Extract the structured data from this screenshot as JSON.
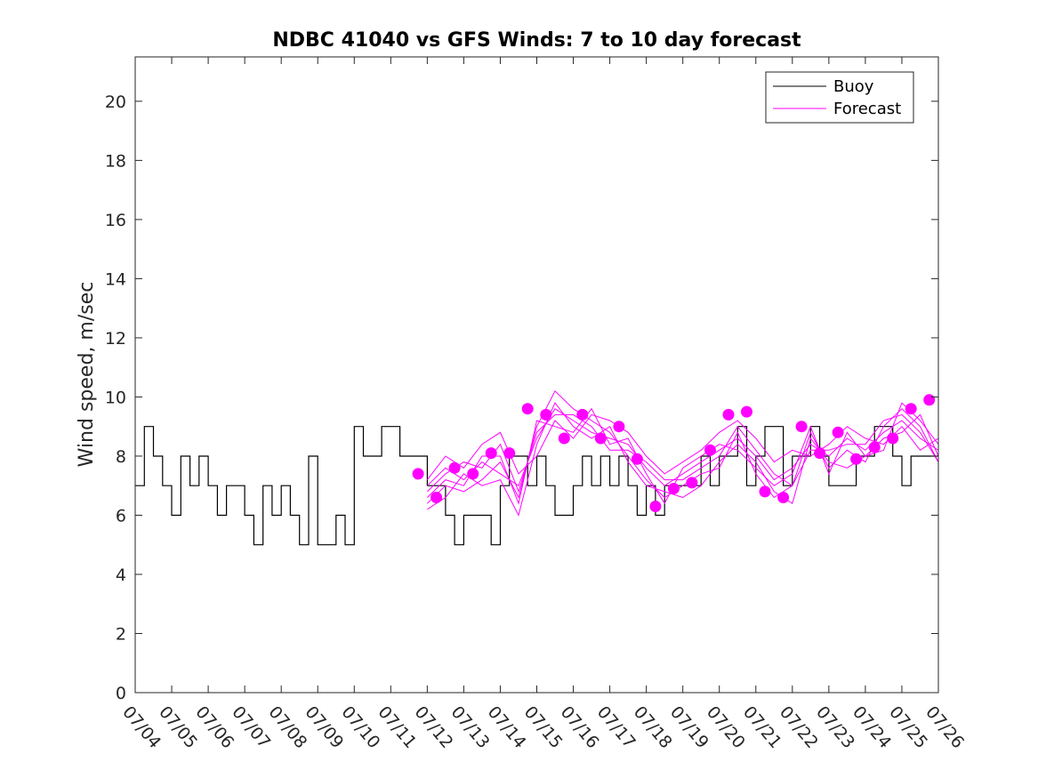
{
  "chart_data": {
    "type": "line",
    "title": "NDBC 41040 vs GFS Winds: 7 to 10 day forecast",
    "xlabel": "",
    "ylabel": "Wind speed, m/sec",
    "x_start": "07/04",
    "x_end": "07/26",
    "xtick_labels": [
      "07/04",
      "07/05",
      "07/06",
      "07/07",
      "07/08",
      "07/09",
      "07/10",
      "07/11",
      "07/12",
      "07/13",
      "07/14",
      "07/15",
      "07/16",
      "07/17",
      "07/18",
      "07/19",
      "07/20",
      "07/21",
      "07/22",
      "07/23",
      "07/24",
      "07/25",
      "07/26"
    ],
    "ylim": [
      0,
      21.5
    ],
    "yticks": [
      0,
      2,
      4,
      6,
      8,
      10,
      12,
      14,
      16,
      18,
      20
    ],
    "grid": false,
    "legend_position": "top-right",
    "colors": {
      "buoy": "#000000",
      "forecast": "#ff00ff"
    },
    "series": [
      {
        "name": "Buoy",
        "style": "line",
        "x": [
          "07/04 00:00",
          "07/04 06:00",
          "07/04 12:00",
          "07/04 18:00",
          "07/05 00:00",
          "07/05 06:00",
          "07/05 12:00",
          "07/05 18:00",
          "07/06 00:00",
          "07/06 06:00",
          "07/06 12:00",
          "07/06 18:00",
          "07/07 00:00",
          "07/07 06:00",
          "07/07 12:00",
          "07/07 18:00",
          "07/08 00:00",
          "07/08 06:00",
          "07/08 12:00",
          "07/08 18:00",
          "07/09 00:00",
          "07/09 06:00",
          "07/09 12:00",
          "07/09 18:00",
          "07/10 00:00",
          "07/10 06:00",
          "07/10 12:00",
          "07/10 18:00",
          "07/11 00:00",
          "07/11 06:00",
          "07/11 12:00",
          "07/11 18:00",
          "07/12 00:00",
          "07/12 06:00",
          "07/12 12:00",
          "07/12 18:00",
          "07/13 00:00",
          "07/13 06:00",
          "07/13 12:00",
          "07/13 18:00",
          "07/14 00:00",
          "07/14 06:00",
          "07/14 12:00",
          "07/14 18:00",
          "07/15 00:00",
          "07/15 06:00",
          "07/15 12:00",
          "07/15 18:00",
          "07/16 00:00",
          "07/16 06:00",
          "07/16 12:00",
          "07/16 18:00",
          "07/17 00:00",
          "07/17 06:00",
          "07/17 12:00",
          "07/17 18:00",
          "07/18 00:00",
          "07/18 06:00",
          "07/18 12:00",
          "07/18 18:00",
          "07/19 00:00",
          "07/19 06:00",
          "07/19 12:00",
          "07/19 18:00",
          "07/20 00:00",
          "07/20 06:00",
          "07/20 12:00",
          "07/20 18:00",
          "07/21 00:00",
          "07/21 06:00",
          "07/21 12:00",
          "07/21 18:00",
          "07/22 00:00",
          "07/22 06:00",
          "07/22 12:00",
          "07/22 18:00",
          "07/23 00:00",
          "07/23 06:00",
          "07/23 12:00",
          "07/23 18:00",
          "07/24 00:00",
          "07/24 06:00",
          "07/24 12:00",
          "07/24 18:00",
          "07/25 00:00",
          "07/25 06:00",
          "07/25 12:00",
          "07/25 18:00",
          "07/26 00:00"
        ],
        "values": [
          7,
          9,
          8,
          7,
          6,
          8,
          7,
          8,
          7,
          6,
          7,
          7,
          6,
          5,
          7,
          6,
          7,
          6,
          5,
          8,
          5,
          5,
          6,
          5,
          9,
          8,
          8,
          9,
          9,
          8,
          8,
          8,
          7,
          7,
          6,
          5,
          6,
          6,
          6,
          5,
          7,
          8,
          8,
          7,
          8,
          7,
          6,
          6,
          7,
          8,
          7,
          8,
          7,
          8,
          7,
          6,
          7,
          6,
          7,
          7,
          7,
          7,
          8,
          7,
          8,
          8,
          9,
          7,
          8,
          9,
          9,
          7,
          8,
          8,
          9,
          8,
          7,
          7,
          7,
          8,
          8,
          9,
          9,
          8,
          7,
          8,
          8,
          8,
          8
        ]
      },
      {
        "name": "",
        "style": "markers",
        "x": [
          "07/11 18:00",
          "07/12 06:00",
          "07/12 18:00",
          "07/13 06:00",
          "07/13 18:00",
          "07/14 06:00",
          "07/14 18:00",
          "07/15 06:00",
          "07/15 18:00",
          "07/16 06:00",
          "07/16 18:00",
          "07/17 06:00",
          "07/17 18:00",
          "07/18 06:00",
          "07/18 18:00",
          "07/19 06:00",
          "07/19 18:00",
          "07/20 06:00",
          "07/20 18:00",
          "07/21 06:00",
          "07/21 18:00",
          "07/22 06:00",
          "07/22 18:00",
          "07/23 06:00",
          "07/23 18:00",
          "07/24 06:00",
          "07/24 18:00",
          "07/25 06:00",
          "07/25 18:00"
        ],
        "values": [
          7.4,
          6.6,
          7.6,
          7.4,
          8.1,
          8.1,
          9.6,
          9.4,
          8.6,
          9.4,
          8.6,
          9.0,
          7.9,
          6.3,
          6.9,
          7.1,
          8.2,
          9.4,
          9.5,
          6.8,
          6.6,
          9.0,
          8.1,
          8.8,
          7.9,
          8.3,
          8.6,
          9.6,
          9.9
        ]
      },
      {
        "name": "Forecast",
        "style": "ensemble",
        "x": [
          "07/12 00:00",
          "07/12 12:00",
          "07/13 00:00",
          "07/13 12:00",
          "07/14 00:00",
          "07/14 12:00",
          "07/15 00:00",
          "07/15 12:00",
          "07/16 00:00",
          "07/16 12:00",
          "07/17 00:00",
          "07/17 12:00",
          "07/18 00:00",
          "07/18 12:00",
          "07/19 00:00",
          "07/19 12:00",
          "07/20 00:00",
          "07/20 12:00",
          "07/21 00:00",
          "07/21 12:00",
          "07/22 00:00",
          "07/22 12:00",
          "07/23 00:00",
          "07/23 12:00",
          "07/24 00:00",
          "07/24 12:00",
          "07/25 00:00",
          "07/25 12:00",
          "07/26 00:00"
        ],
        "members": [
          [
            7.0,
            7.6,
            7.2,
            7.8,
            7.4,
            7.0,
            8.6,
            9.6,
            9.2,
            8.8,
            8.6,
            8.4,
            7.6,
            7.0,
            7.4,
            7.8,
            8.2,
            8.6,
            8.0,
            7.2,
            7.6,
            8.4,
            8.0,
            8.6,
            8.2,
            8.8,
            9.2,
            8.6,
            8.2
          ],
          [
            6.4,
            7.0,
            6.8,
            7.2,
            7.8,
            6.6,
            9.0,
            10.2,
            9.6,
            9.2,
            8.8,
            8.0,
            7.2,
            6.6,
            7.0,
            7.4,
            7.6,
            8.8,
            7.4,
            6.6,
            7.0,
            8.8,
            7.6,
            8.2,
            7.8,
            9.0,
            9.6,
            9.0,
            7.8
          ],
          [
            7.2,
            8.0,
            7.6,
            8.4,
            8.8,
            7.4,
            8.0,
            9.2,
            8.6,
            9.4,
            9.2,
            8.8,
            8.0,
            7.4,
            7.8,
            8.2,
            8.8,
            9.2,
            8.6,
            7.8,
            8.2,
            8.0,
            8.4,
            9.0,
            8.6,
            8.4,
            9.0,
            8.2,
            8.6
          ],
          [
            6.2,
            6.6,
            7.4,
            7.0,
            7.2,
            6.0,
            8.4,
            9.8,
            9.0,
            8.6,
            9.0,
            7.8,
            7.0,
            6.8,
            6.6,
            7.0,
            7.8,
            8.4,
            7.8,
            6.8,
            6.4,
            8.6,
            7.8,
            7.6,
            8.0,
            8.6,
            8.8,
            9.4,
            8.0
          ],
          [
            6.8,
            7.4,
            7.8,
            7.6,
            8.4,
            6.8,
            8.8,
            9.4,
            9.4,
            9.0,
            8.2,
            8.2,
            7.8,
            7.2,
            7.2,
            7.6,
            8.0,
            9.0,
            8.2,
            7.4,
            7.0,
            8.2,
            8.2,
            8.4,
            8.4,
            9.2,
            9.4,
            8.8,
            7.8
          ],
          [
            6.6,
            7.2,
            7.0,
            8.0,
            8.0,
            6.4,
            9.2,
            9.0,
            8.8,
            9.6,
            8.4,
            8.6,
            7.4,
            6.4,
            7.6,
            8.0,
            8.4,
            8.2,
            7.6,
            7.0,
            7.4,
            9.0,
            7.4,
            8.8,
            8.0,
            8.2,
            9.8,
            9.2,
            8.4
          ]
        ]
      }
    ]
  }
}
